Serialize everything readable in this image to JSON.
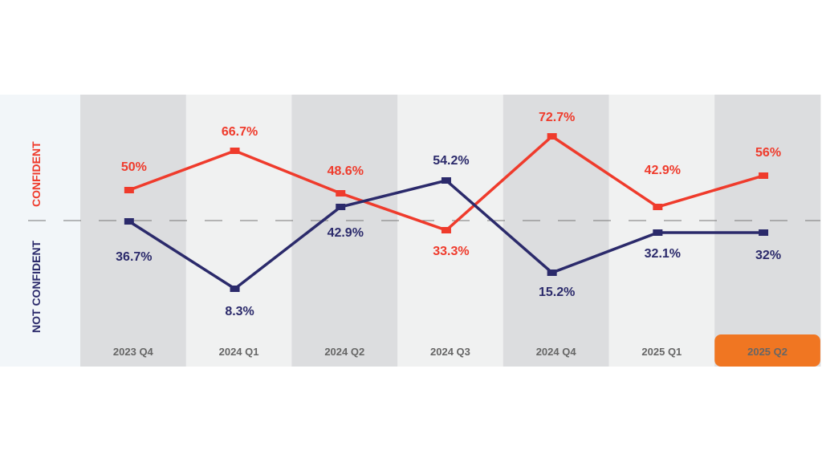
{
  "chart_data": {
    "type": "line",
    "categories": [
      "2023 Q4",
      "2024 Q1",
      "2024 Q2",
      "2024 Q3",
      "2024 Q4",
      "2025 Q1",
      "2025 Q2"
    ],
    "highlighted_category": "2025 Q2",
    "series": [
      {
        "name": "CONFIDENT",
        "color": "#ef3b2c",
        "values": [
          50,
          66.7,
          48.6,
          33.3,
          72.7,
          42.9,
          56
        ],
        "labels": [
          "50%",
          "66.7%",
          "48.6%",
          "33.3%",
          "72.7%",
          "42.9%",
          "56%"
        ]
      },
      {
        "name": "NOT CONFIDENT",
        "color": "#2b2a6b",
        "values": [
          36.7,
          8.3,
          42.9,
          54.2,
          15.2,
          32.1,
          32
        ],
        "labels": [
          "36.7%",
          "8.3%",
          "42.9%",
          "54.2%",
          "15.2%",
          "32.1%",
          "32%"
        ]
      }
    ],
    "highlight_color": "#f07622",
    "grid": false,
    "legend": "left, vertical"
  }
}
